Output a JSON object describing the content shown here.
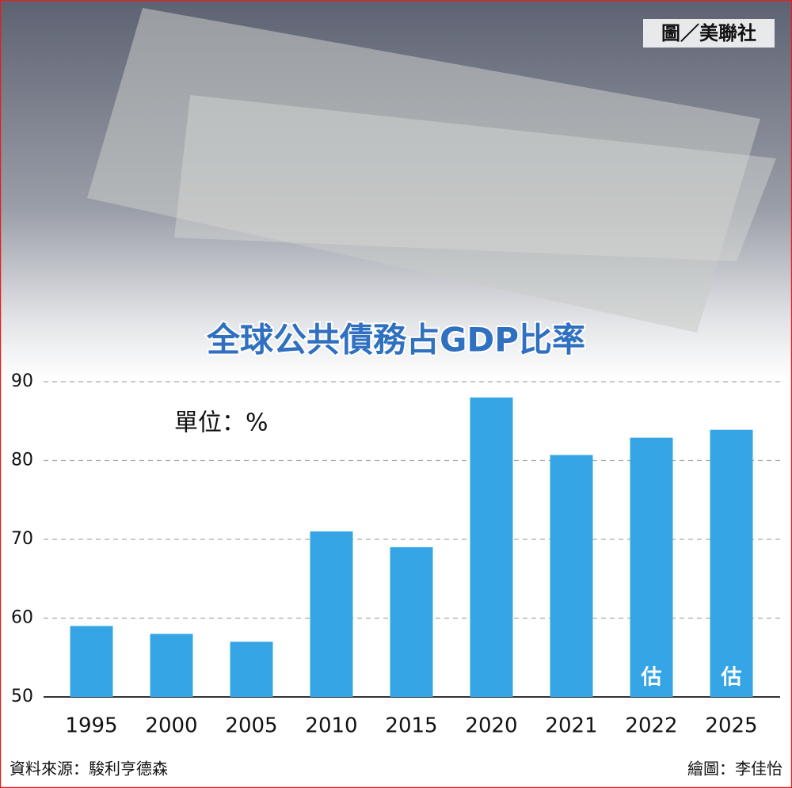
{
  "chart_data": {
    "type": "bar",
    "title": "全球公共債務占GDP比率",
    "unit_label": "單位：%",
    "photo_credit": "圖／美聯社",
    "source": "資料來源：駿利亨德森",
    "credit": "繪圖：李佳怡",
    "categories": [
      "1995",
      "2000",
      "2005",
      "2010",
      "2015",
      "2020",
      "2021",
      "2022",
      "2025"
    ],
    "values": [
      59,
      58,
      57,
      71,
      69,
      88,
      80.7,
      82.9,
      83.9
    ],
    "value_notes": [
      null,
      null,
      null,
      null,
      null,
      null,
      null,
      "估",
      "估"
    ],
    "color": "#35a5e6",
    "ylim": [
      50,
      90
    ],
    "yticks": [
      50,
      60,
      70,
      80,
      90
    ],
    "grid": true
  }
}
